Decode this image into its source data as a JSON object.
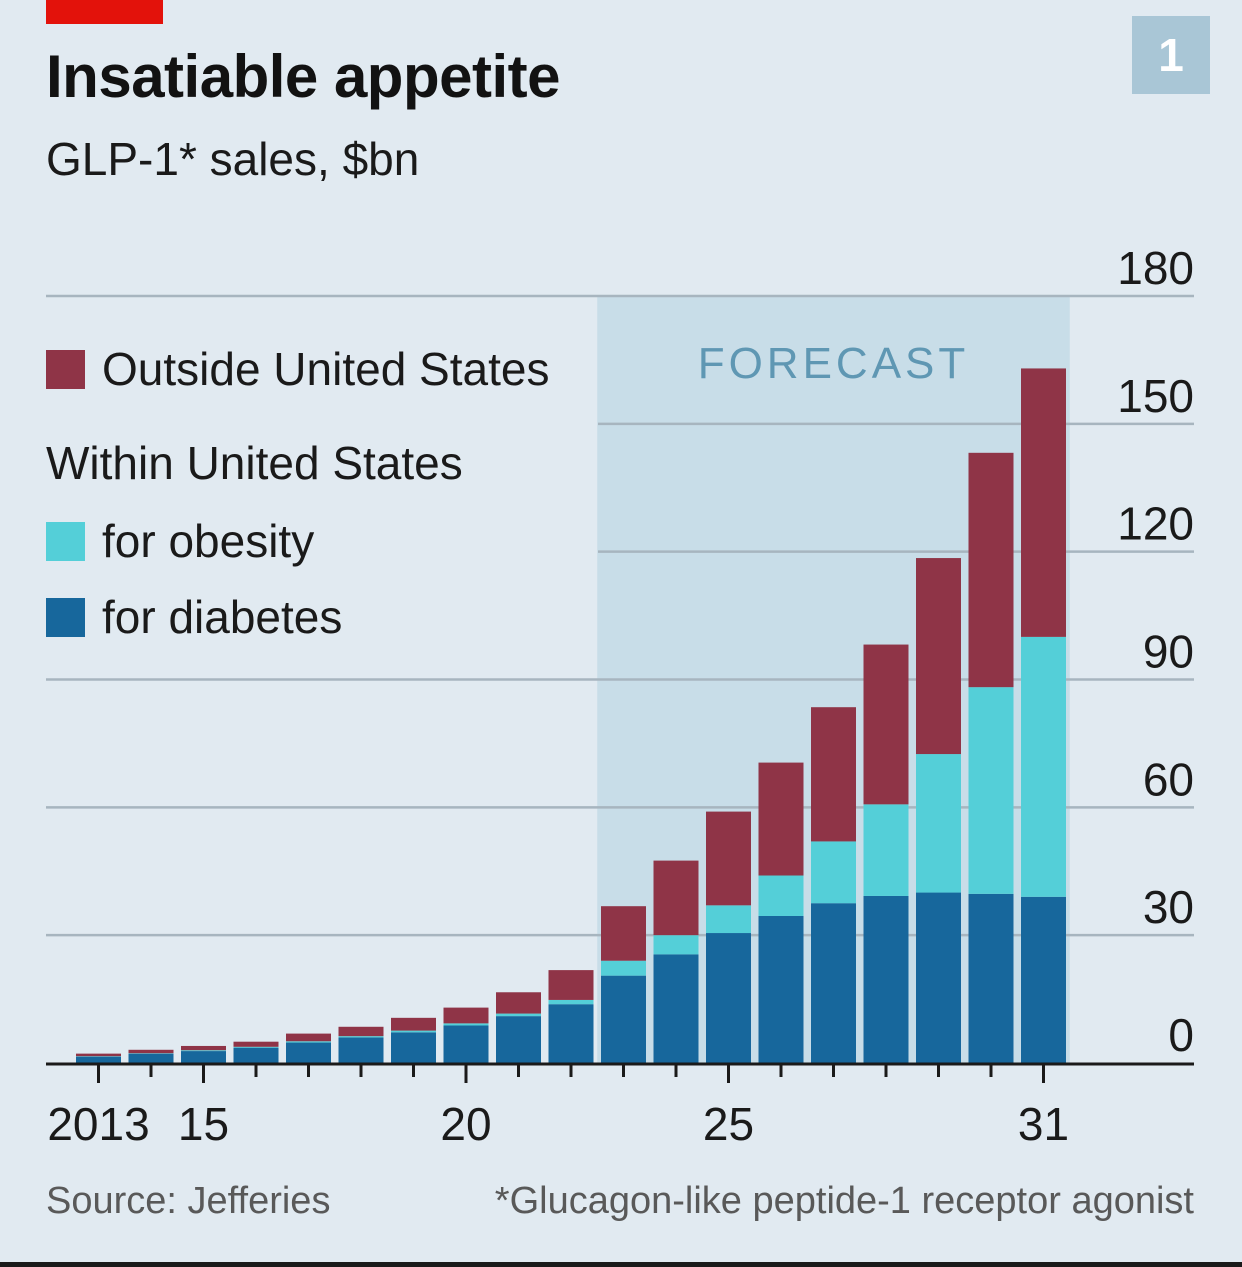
{
  "header": {
    "title": "Insatiable appetite",
    "subtitle": "GLP-1* sales, $bn",
    "badge": "1"
  },
  "legend": {
    "outside": "Outside United States",
    "within_heading": "Within United States",
    "obesity": "for obesity",
    "diabetes": "for diabetes"
  },
  "footer": {
    "source": "Source: Jefferies",
    "footnote": "*Glucagon-like peptide-1 receptor agonist"
  },
  "colors": {
    "background": "#e1eaf1",
    "forecast_shade": "#c8dde8",
    "outside_us": "#8f3447",
    "us_obesity": "#54cfd8",
    "us_diabetes": "#17679c",
    "brand_red": "#e3120b",
    "forecast_text": "#5f97b3"
  },
  "chart_data": {
    "type": "bar",
    "stacked": true,
    "title": "Insatiable appetite",
    "subtitle": "GLP-1* sales, $bn",
    "categories": [
      "2013",
      "2014",
      "2015",
      "2016",
      "2017",
      "2018",
      "2019",
      "2020",
      "2021",
      "2022",
      "2023",
      "2024",
      "2025",
      "2026",
      "2027",
      "2028",
      "2029",
      "2030",
      "2031"
    ],
    "x_tick_labels": [
      {
        "category": "2013",
        "label": "2013"
      },
      {
        "category": "2015",
        "label": "15"
      },
      {
        "category": "2020",
        "label": "20"
      },
      {
        "category": "2025",
        "label": "25"
      },
      {
        "category": "2031",
        "label": "31"
      }
    ],
    "series": [
      {
        "name": "for diabetes",
        "color": "#17679c",
        "values": [
          1.5,
          2.2,
          2.8,
          3.6,
          4.8,
          6.0,
          7.2,
          8.8,
          11.0,
          13.8,
          20.5,
          25.5,
          30.5,
          34.5,
          37.5,
          39.2,
          40.0,
          39.7,
          39.0
        ]
      },
      {
        "name": "for obesity",
        "color": "#54cfd8",
        "values": [
          0.1,
          0.1,
          0.2,
          0.2,
          0.3,
          0.3,
          0.4,
          0.5,
          0.6,
          1.0,
          3.5,
          4.5,
          6.5,
          9.5,
          14.5,
          21.5,
          32.5,
          48.5,
          61.0
        ]
      },
      {
        "name": "Outside United States",
        "color": "#8f3447",
        "values": [
          0.6,
          0.8,
          1.0,
          1.2,
          1.8,
          2.2,
          3.0,
          3.7,
          5.0,
          7.0,
          12.8,
          17.5,
          22.0,
          26.5,
          31.5,
          37.5,
          46.0,
          55.0,
          63.0
        ]
      }
    ],
    "legend_group_label": "Within United States",
    "y_ticks": [
      0,
      30,
      60,
      90,
      120,
      150,
      180
    ],
    "ylim": [
      0,
      180
    ],
    "y_axis_side": "right",
    "grid": true,
    "forecast_region": {
      "label": "FORECAST",
      "from": "2023",
      "to": "2031"
    },
    "legend_position": "top-left"
  }
}
